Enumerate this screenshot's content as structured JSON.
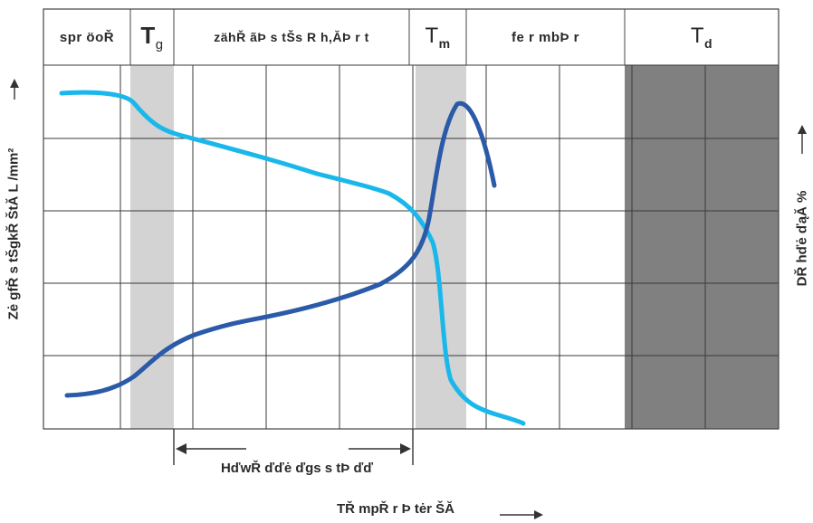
{
  "header": {
    "col1": "spr öoŘ",
    "tg_letter": "T",
    "tg_sub": "g",
    "col3": "zähŘ ãÞ s tŠs R h,ĂÞ r  t",
    "tm_letter": "T",
    "tm_sub": "m",
    "col5": "fe r  mbÞ r",
    "td_letter": "T",
    "td_sub": "d"
  },
  "y_axis_left": "Zė gfŘ s tŠgkŘ ŠtĂ L /mm²",
  "y_axis_right": "DŘ hďė ďąĂ %",
  "range_label": "HďwŘ ďďė ďgs s tÞ ďď",
  "x_axis": "TŘ mpŘ r Þ tėr ŠĂ",
  "colors": {
    "frame": "#444444",
    "grid": "#3a3a3a",
    "band_light": "#d3d3d3",
    "band_dark": "#808080",
    "curve_light": "#1ab8ea",
    "curve_dark": "#2b5aa8"
  }
}
